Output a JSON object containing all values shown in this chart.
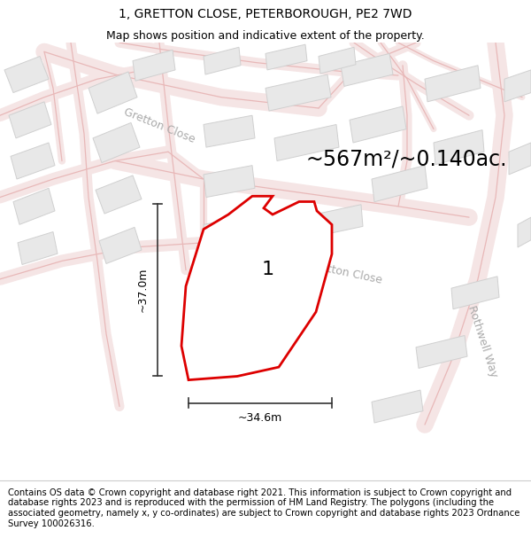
{
  "title_line1": "1, GRETTON CLOSE, PETERBOROUGH, PE2 7WD",
  "title_line2": "Map shows position and indicative extent of the property.",
  "area_text": "~567m²/~0.140ac.",
  "label_1": "1",
  "dim_width": "~34.6m",
  "dim_height": "~37.0m",
  "footer_text": "Contains OS data © Crown copyright and database right 2021. This information is subject to Crown copyright and database rights 2023 and is reproduced with the permission of HM Land Registry. The polygons (including the associated geometry, namely x, y co-ordinates) are subject to Crown copyright and database rights 2023 Ordnance Survey 100026316.",
  "bg_color": "#ffffff",
  "map_bg": "#ffffff",
  "road_line_color": "#e8b8b8",
  "block_fill": "#e8e8e8",
  "block_edge": "#d0d0d0",
  "plot_outline_color": "#dd0000",
  "plot_fill": "#ffffff",
  "street_label_color": "#aaaaaa",
  "dim_line_color": "#333333",
  "title_fontsize": 10,
  "subtitle_fontsize": 9,
  "area_fontsize": 17,
  "street_fontsize": 9,
  "dim_fontsize": 9,
  "plot_label_fontsize": 16,
  "footer_fontsize": 7.2,
  "road_lw": 0.9,
  "block_lw": 0.7
}
